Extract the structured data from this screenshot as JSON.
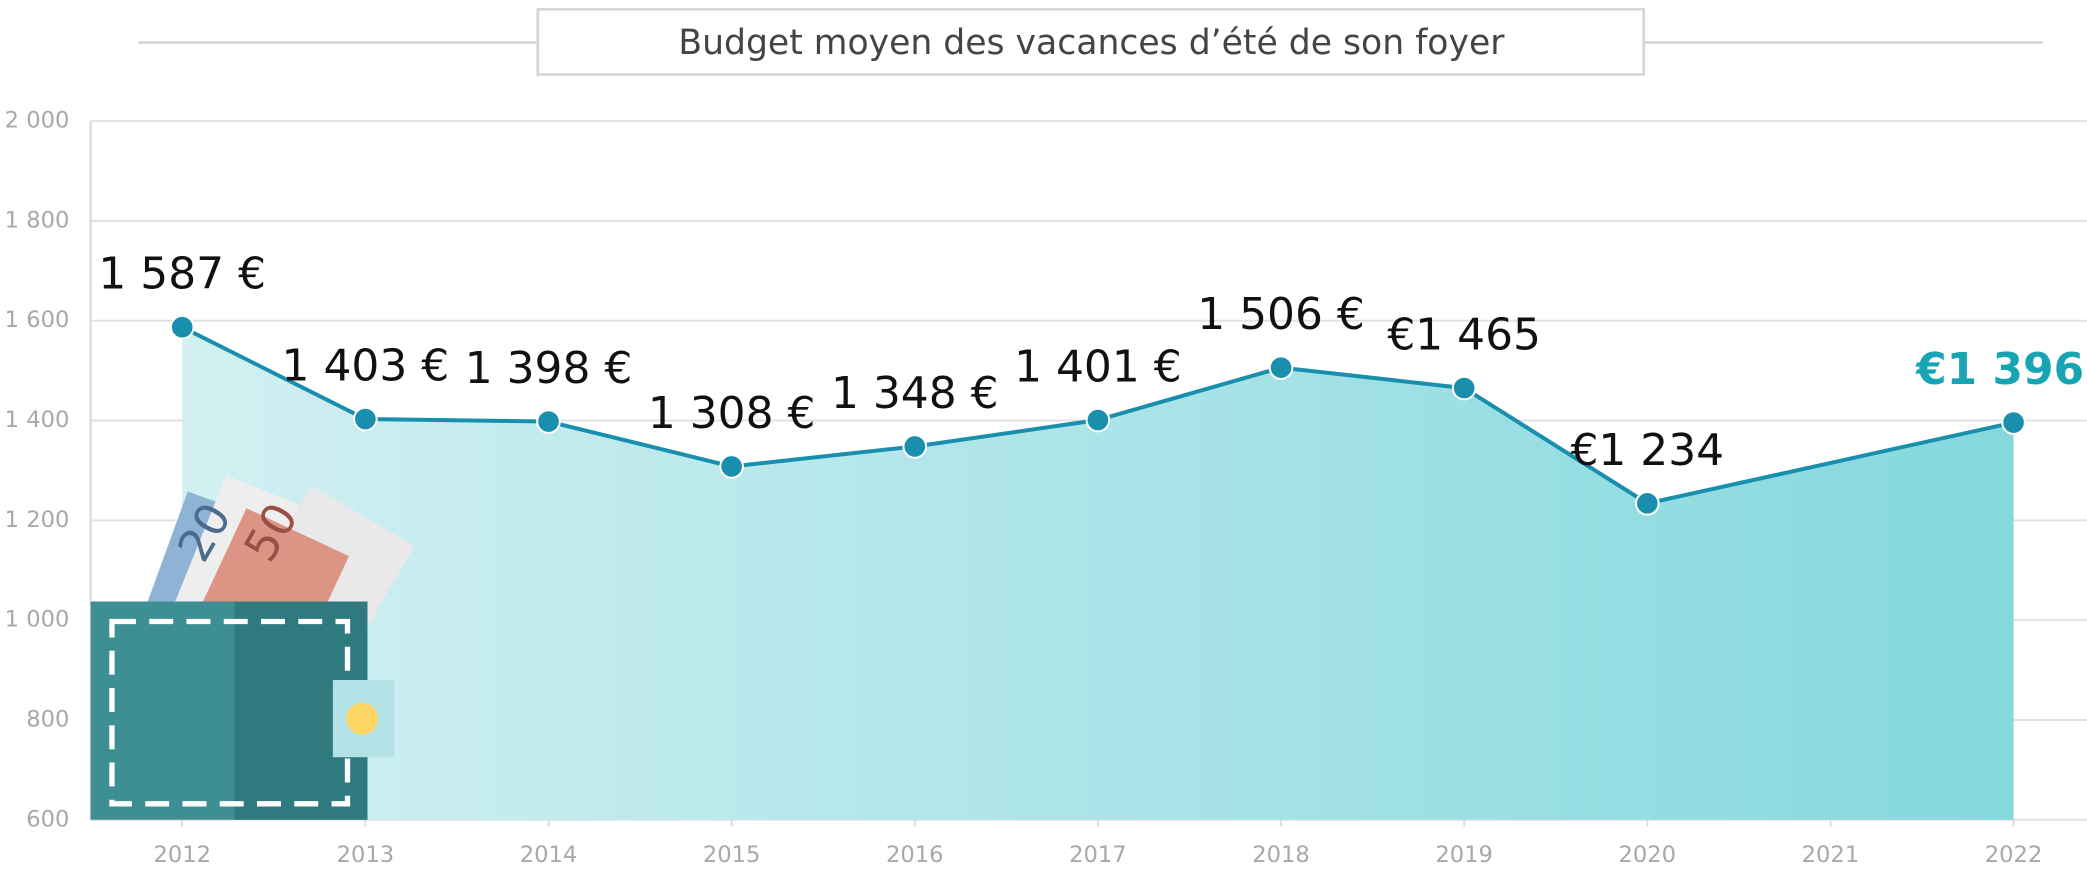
{
  "chart_data": {
    "type": "line",
    "title": "Budget moyen des vacances d’été de son foyer",
    "x": [
      2012,
      2013,
      2014,
      2015,
      2016,
      2017,
      2018,
      2019,
      2020,
      2022
    ],
    "values": [
      1587,
      1403,
      1398,
      1308,
      1348,
      1401,
      1506,
      1465,
      1234,
      1396
    ],
    "value_labels": [
      "1 587 €",
      "1 403 €",
      "1 398 €",
      "1 308 €",
      "1 348 €",
      "1 401 €",
      "1 506 €",
      "€1 465",
      "€1 234",
      "€1 396"
    ],
    "color": "#1a8fad",
    "highlight_color": "#17a5b3",
    "xlim": [
      2011.5,
      2022.4
    ],
    "xticks": [
      2012,
      2013,
      2014,
      2015,
      2016,
      2017,
      2018,
      2019,
      2020,
      2021,
      2022
    ],
    "ylim": [
      600,
      2000
    ],
    "yticks": [
      {
        "value": 600,
        "label": "600"
      },
      {
        "value": 800,
        "label": "800"
      },
      {
        "value": 1000,
        "label": "1 000"
      },
      {
        "value": 1200,
        "label": "1 200"
      },
      {
        "value": 1400,
        "label": "1 400"
      },
      {
        "value": 1600,
        "label": "1 600"
      },
      {
        "value": 1800,
        "label": "1 800"
      },
      {
        "value": 2000,
        "label": "2 000"
      }
    ],
    "grid": true
  }
}
